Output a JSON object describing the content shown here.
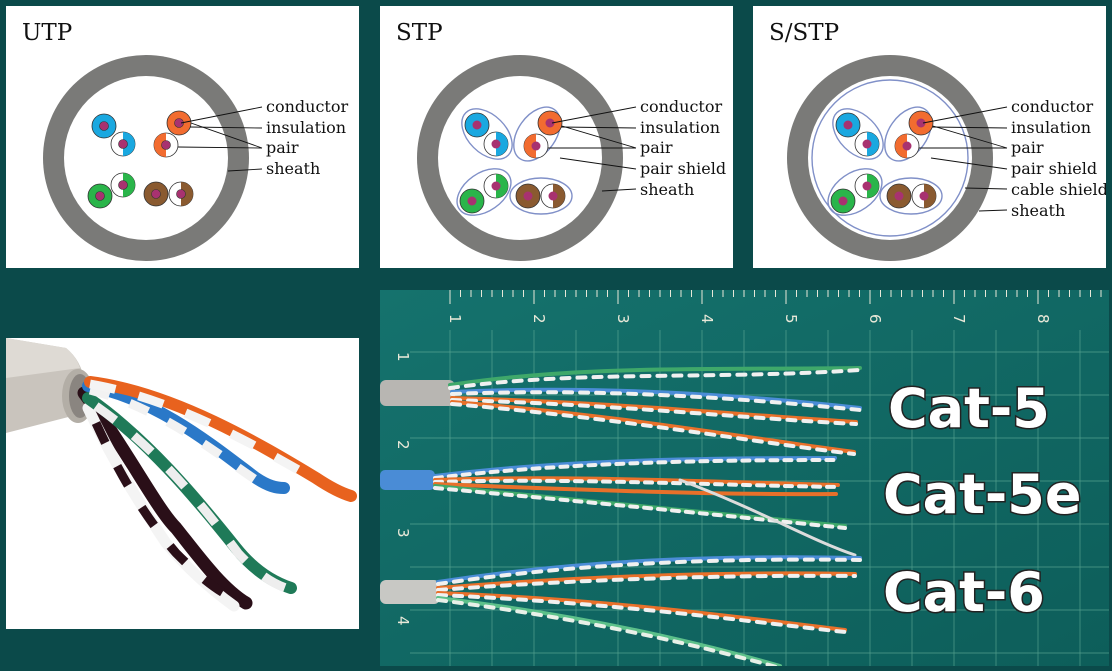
{
  "diagrams": [
    {
      "title": "UTP",
      "labels": [
        "conductor",
        "insulation",
        "pair",
        "sheath"
      ]
    },
    {
      "title": "STP",
      "labels": [
        "conductor",
        "insulation",
        "pair",
        "pair shield",
        "sheath"
      ]
    },
    {
      "title": "S/STP",
      "labels": [
        "conductor",
        "insulation",
        "pair",
        "pair shield",
        "cable shield",
        "sheath"
      ]
    }
  ],
  "comparison": {
    "labels": [
      "Cat-5",
      "Cat-5e",
      "Cat-6"
    ],
    "ruler_top": [
      "1",
      "2",
      "3",
      "4",
      "5",
      "6",
      "7",
      "8"
    ],
    "ruler_left": [
      "1",
      "2",
      "3",
      "4"
    ]
  },
  "colors": {
    "background": "#0b4a4a",
    "sheath": "#7a7a78",
    "blue": "#1aa8e0",
    "orange": "#f26c30",
    "green": "#2ab54a",
    "brown": "#8a5a30",
    "core": "#a83270",
    "mat": "#0f6a66"
  }
}
